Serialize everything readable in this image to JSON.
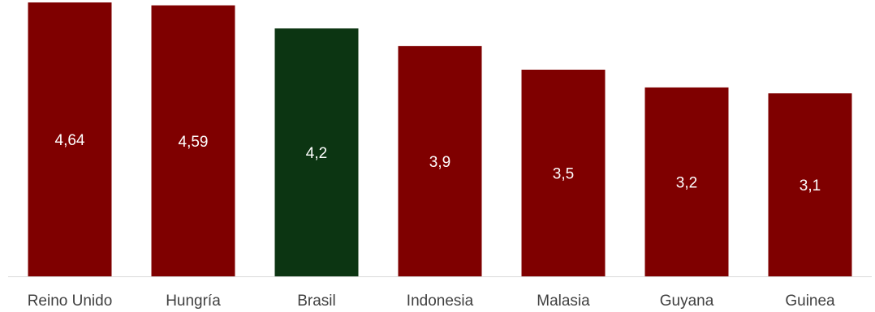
{
  "chart_data": {
    "type": "bar",
    "categories": [
      "Reino Unido",
      "Hungría",
      "Brasil",
      "Indonesia",
      "Malasia",
      "Guyana",
      "Guinea"
    ],
    "values": [
      4.64,
      4.59,
      4.2,
      3.9,
      3.5,
      3.2,
      3.1
    ],
    "value_labels": [
      "4,64",
      "4,59",
      "4,2",
      "3,9",
      "3,5",
      "3,2",
      "3,1"
    ],
    "highlight_category": "Brasil",
    "title": "",
    "xlabel": "",
    "ylabel": "",
    "ylim": [
      0,
      4.64
    ],
    "grid": false,
    "legend": "none"
  },
  "colors": {
    "bar_default": "#7f0000",
    "bar_highlight": "#0c3512",
    "value_label": "#ffffff",
    "category_label": "#404040",
    "baseline": "#d9d9d9"
  }
}
